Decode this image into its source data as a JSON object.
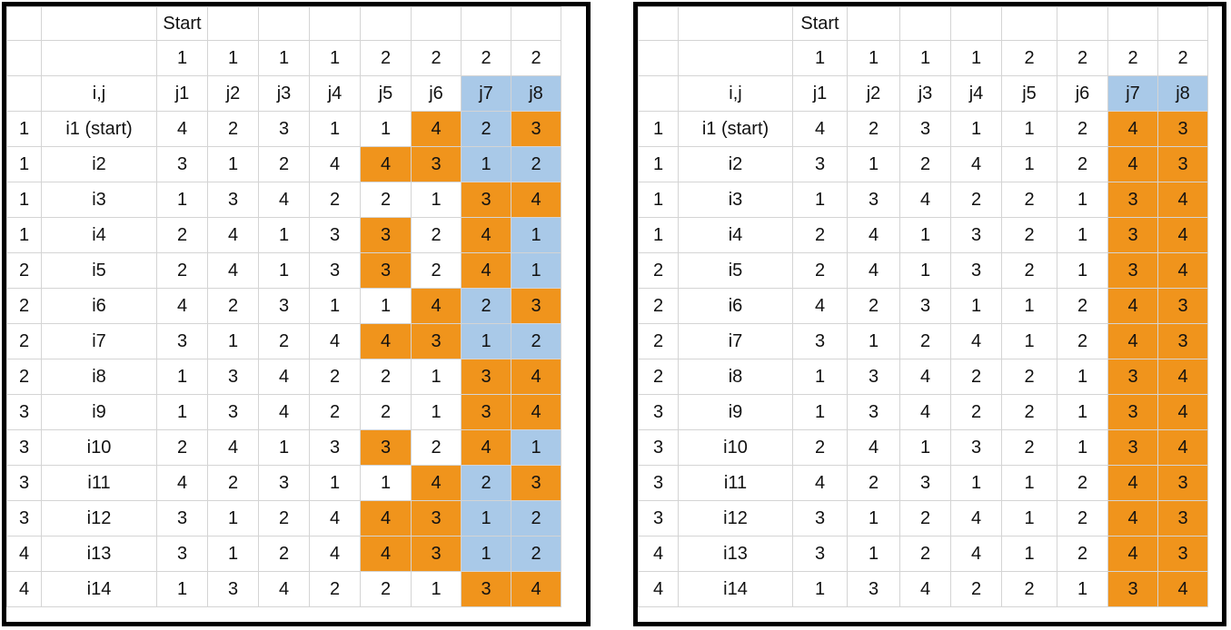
{
  "colors": {
    "highlight_orange": "#f0941c",
    "highlight_blue": "#a9c9e8",
    "cell_border": "#000000",
    "grid_line": "#d4d4d4"
  },
  "left": {
    "start_label": "Start",
    "header_values": [
      "1",
      "1",
      "1",
      "1",
      "2",
      "2",
      "2",
      "2"
    ],
    "ij_label": "i,j",
    "col_labels": [
      "j1",
      "j2",
      "j3",
      "j4",
      "j5",
      "j6",
      "j7",
      "j8"
    ],
    "col_fill": [
      "",
      "",
      "",
      "",
      "",
      "",
      "b",
      "b"
    ],
    "rows": [
      {
        "group": "1",
        "label": "i1 (start)",
        "values": [
          "4",
          "2",
          "3",
          "1",
          "1",
          "4",
          "2",
          "3"
        ],
        "fills": [
          "",
          "",
          "",
          "",
          "",
          "o",
          "b",
          "o"
        ]
      },
      {
        "group": "1",
        "label": "i2",
        "values": [
          "3",
          "1",
          "2",
          "4",
          "4",
          "3",
          "1",
          "2"
        ],
        "fills": [
          "",
          "",
          "",
          "",
          "o",
          "o",
          "b",
          "b"
        ]
      },
      {
        "group": "1",
        "label": "i3",
        "values": [
          "1",
          "3",
          "4",
          "2",
          "2",
          "1",
          "3",
          "4"
        ],
        "fills": [
          "",
          "",
          "",
          "",
          "",
          "",
          "o",
          "o"
        ]
      },
      {
        "group": "1",
        "label": "i4",
        "values": [
          "2",
          "4",
          "1",
          "3",
          "3",
          "2",
          "4",
          "1"
        ],
        "fills": [
          "",
          "",
          "",
          "",
          "o",
          "",
          "o",
          "b"
        ]
      },
      {
        "group": "2",
        "label": "i5",
        "values": [
          "2",
          "4",
          "1",
          "3",
          "3",
          "2",
          "4",
          "1"
        ],
        "fills": [
          "",
          "",
          "",
          "",
          "o",
          "",
          "o",
          "b"
        ]
      },
      {
        "group": "2",
        "label": "i6",
        "values": [
          "4",
          "2",
          "3",
          "1",
          "1",
          "4",
          "2",
          "3"
        ],
        "fills": [
          "",
          "",
          "",
          "",
          "",
          "o",
          "b",
          "o"
        ]
      },
      {
        "group": "2",
        "label": "i7",
        "values": [
          "3",
          "1",
          "2",
          "4",
          "4",
          "3",
          "1",
          "2"
        ],
        "fills": [
          "",
          "",
          "",
          "",
          "o",
          "o",
          "b",
          "b"
        ]
      },
      {
        "group": "2",
        "label": "i8",
        "values": [
          "1",
          "3",
          "4",
          "2",
          "2",
          "1",
          "3",
          "4"
        ],
        "fills": [
          "",
          "",
          "",
          "",
          "",
          "",
          "o",
          "o"
        ]
      },
      {
        "group": "3",
        "label": "i9",
        "values": [
          "1",
          "3",
          "4",
          "2",
          "2",
          "1",
          "3",
          "4"
        ],
        "fills": [
          "",
          "",
          "",
          "",
          "",
          "",
          "o",
          "o"
        ]
      },
      {
        "group": "3",
        "label": "i10",
        "values": [
          "2",
          "4",
          "1",
          "3",
          "3",
          "2",
          "4",
          "1"
        ],
        "fills": [
          "",
          "",
          "",
          "",
          "o",
          "",
          "o",
          "b"
        ]
      },
      {
        "group": "3",
        "label": "i11",
        "values": [
          "4",
          "2",
          "3",
          "1",
          "1",
          "4",
          "2",
          "3"
        ],
        "fills": [
          "",
          "",
          "",
          "",
          "",
          "o",
          "b",
          "o"
        ]
      },
      {
        "group": "3",
        "label": "i12",
        "values": [
          "3",
          "1",
          "2",
          "4",
          "4",
          "3",
          "1",
          "2"
        ],
        "fills": [
          "",
          "",
          "",
          "",
          "o",
          "o",
          "b",
          "b"
        ]
      },
      {
        "group": "4",
        "label": "i13",
        "values": [
          "3",
          "1",
          "2",
          "4",
          "4",
          "3",
          "1",
          "2"
        ],
        "fills": [
          "",
          "",
          "",
          "",
          "o",
          "o",
          "b",
          "b"
        ]
      },
      {
        "group": "4",
        "label": "i14",
        "values": [
          "1",
          "3",
          "4",
          "2",
          "2",
          "1",
          "3",
          "4"
        ],
        "fills": [
          "",
          "",
          "",
          "",
          "",
          "",
          "o",
          "o"
        ]
      }
    ]
  },
  "right": {
    "start_label": "Start",
    "header_values": [
      "1",
      "1",
      "1",
      "1",
      "2",
      "2",
      "2",
      "2"
    ],
    "ij_label": "i,j",
    "col_labels": [
      "j1",
      "j2",
      "j3",
      "j4",
      "j5",
      "j6",
      "j7",
      "j8"
    ],
    "col_fill": [
      "",
      "",
      "",
      "",
      "",
      "",
      "b",
      "b"
    ],
    "rows": [
      {
        "group": "1",
        "label": "i1 (start)",
        "values": [
          "4",
          "2",
          "3",
          "1",
          "1",
          "2",
          "4",
          "3"
        ],
        "fills": [
          "",
          "",
          "",
          "",
          "",
          "",
          "o",
          "o"
        ]
      },
      {
        "group": "1",
        "label": "i2",
        "values": [
          "3",
          "1",
          "2",
          "4",
          "1",
          "2",
          "4",
          "3"
        ],
        "fills": [
          "",
          "",
          "",
          "",
          "",
          "",
          "o",
          "o"
        ]
      },
      {
        "group": "1",
        "label": "i3",
        "values": [
          "1",
          "3",
          "4",
          "2",
          "2",
          "1",
          "3",
          "4"
        ],
        "fills": [
          "",
          "",
          "",
          "",
          "",
          "",
          "o",
          "o"
        ]
      },
      {
        "group": "1",
        "label": "i4",
        "values": [
          "2",
          "4",
          "1",
          "3",
          "2",
          "1",
          "3",
          "4"
        ],
        "fills": [
          "",
          "",
          "",
          "",
          "",
          "",
          "o",
          "o"
        ]
      },
      {
        "group": "2",
        "label": "i5",
        "values": [
          "2",
          "4",
          "1",
          "3",
          "2",
          "1",
          "3",
          "4"
        ],
        "fills": [
          "",
          "",
          "",
          "",
          "",
          "",
          "o",
          "o"
        ]
      },
      {
        "group": "2",
        "label": "i6",
        "values": [
          "4",
          "2",
          "3",
          "1",
          "1",
          "2",
          "4",
          "3"
        ],
        "fills": [
          "",
          "",
          "",
          "",
          "",
          "",
          "o",
          "o"
        ]
      },
      {
        "group": "2",
        "label": "i7",
        "values": [
          "3",
          "1",
          "2",
          "4",
          "1",
          "2",
          "4",
          "3"
        ],
        "fills": [
          "",
          "",
          "",
          "",
          "",
          "",
          "o",
          "o"
        ]
      },
      {
        "group": "2",
        "label": "i8",
        "values": [
          "1",
          "3",
          "4",
          "2",
          "2",
          "1",
          "3",
          "4"
        ],
        "fills": [
          "",
          "",
          "",
          "",
          "",
          "",
          "o",
          "o"
        ]
      },
      {
        "group": "3",
        "label": "i9",
        "values": [
          "1",
          "3",
          "4",
          "2",
          "2",
          "1",
          "3",
          "4"
        ],
        "fills": [
          "",
          "",
          "",
          "",
          "",
          "",
          "o",
          "o"
        ]
      },
      {
        "group": "3",
        "label": "i10",
        "values": [
          "2",
          "4",
          "1",
          "3",
          "2",
          "1",
          "3",
          "4"
        ],
        "fills": [
          "",
          "",
          "",
          "",
          "",
          "",
          "o",
          "o"
        ]
      },
      {
        "group": "3",
        "label": "i11",
        "values": [
          "4",
          "2",
          "3",
          "1",
          "1",
          "2",
          "4",
          "3"
        ],
        "fills": [
          "",
          "",
          "",
          "",
          "",
          "",
          "o",
          "o"
        ]
      },
      {
        "group": "3",
        "label": "i12",
        "values": [
          "3",
          "1",
          "2",
          "4",
          "1",
          "2",
          "4",
          "3"
        ],
        "fills": [
          "",
          "",
          "",
          "",
          "",
          "",
          "o",
          "o"
        ]
      },
      {
        "group": "4",
        "label": "i13",
        "values": [
          "3",
          "1",
          "2",
          "4",
          "1",
          "2",
          "4",
          "3"
        ],
        "fills": [
          "",
          "",
          "",
          "",
          "",
          "",
          "o",
          "o"
        ]
      },
      {
        "group": "4",
        "label": "i14",
        "values": [
          "1",
          "3",
          "4",
          "2",
          "2",
          "1",
          "3",
          "4"
        ],
        "fills": [
          "",
          "",
          "",
          "",
          "",
          "",
          "o",
          "o"
        ]
      }
    ]
  }
}
